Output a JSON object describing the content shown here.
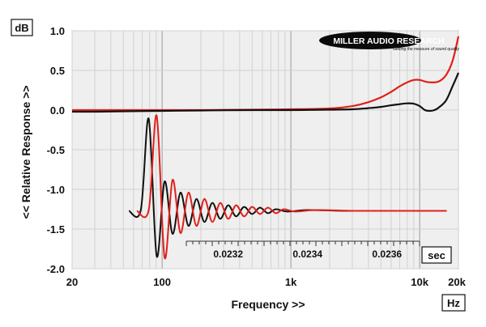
{
  "chart_data": {
    "type": "line",
    "title": "",
    "xlabel": "Frequency >>",
    "ylabel": "<< Relative Response >>",
    "x_unit": "Hz",
    "y_unit": "dB",
    "x_scale": "log",
    "xlim": [
      20,
      20000
    ],
    "ylim": [
      -2.0,
      1.0
    ],
    "x_ticks": [
      {
        "value": 20,
        "label": "20"
      },
      {
        "value": 100,
        "label": "100"
      },
      {
        "value": 1000,
        "label": "1k"
      },
      {
        "value": 10000,
        "label": "10k"
      },
      {
        "value": 20000,
        "label": "20k"
      }
    ],
    "y_ticks": [
      {
        "value": 1.0,
        "label": "1.0"
      },
      {
        "value": 0.5,
        "label": "0.5"
      },
      {
        "value": 0.0,
        "label": "0.0"
      },
      {
        "value": -0.5,
        "label": "-0.5"
      },
      {
        "value": -1.0,
        "label": "-1.0"
      },
      {
        "value": -1.5,
        "label": "-1.5"
      },
      {
        "value": -2.0,
        "label": "-2.0"
      }
    ],
    "grid": true,
    "brand": "MILLER AUDIO RESEARCH",
    "brand_tagline": "Getting the measure of sound quality",
    "frequency_response": [
      {
        "color": "#e0201a",
        "x": [
          20,
          30,
          50,
          100,
          200,
          500,
          1000,
          2000,
          3000,
          4000,
          5000,
          6000,
          7000,
          8000,
          9000,
          10000,
          11000,
          12000,
          14000,
          16000,
          18000,
          20000
        ],
        "y": [
          0.0,
          0.0,
          0.0,
          0.0,
          0.0,
          0.005,
          0.01,
          0.02,
          0.05,
          0.1,
          0.16,
          0.23,
          0.3,
          0.35,
          0.38,
          0.38,
          0.36,
          0.35,
          0.36,
          0.44,
          0.62,
          0.93
        ]
      },
      {
        "color": "#111111",
        "x": [
          20,
          30,
          50,
          100,
          200,
          500,
          1000,
          2000,
          3000,
          4000,
          5000,
          6000,
          7000,
          8000,
          9000,
          10000,
          11000,
          12000,
          13000,
          14000,
          16000,
          18000,
          20000
        ],
        "y": [
          -0.02,
          -0.02,
          -0.015,
          -0.01,
          -0.005,
          0.0,
          0.0,
          0.005,
          0.01,
          0.025,
          0.04,
          0.06,
          0.075,
          0.085,
          0.08,
          0.05,
          0.0,
          -0.01,
          0.0,
          0.03,
          0.12,
          0.3,
          0.47
        ]
      }
    ],
    "impulse_response": {
      "x_unit": "sec",
      "x_ticks": [
        {
          "value": 0.0232,
          "label": "0.0232"
        },
        {
          "value": 0.0234,
          "label": "0.0234"
        },
        {
          "value": 0.0236,
          "label": "0.0236"
        }
      ],
      "baseline_db": -1.27,
      "series": [
        {
          "color": "#111111",
          "x": [
            0.02295,
            0.02298,
            0.023,
            0.02302,
            0.02304,
            0.02306,
            0.02308,
            0.0231,
            0.02312,
            0.02314,
            0.02316,
            0.02318,
            0.0232,
            0.02322,
            0.02324,
            0.02326,
            0.02328,
            0.0233,
            0.02332,
            0.02335,
            0.0234,
            0.0235,
            0.0236,
            0.02375
          ],
          "y": [
            -1.27,
            -1.26,
            -0.11,
            -1.84,
            -0.9,
            -1.56,
            -1.04,
            -1.46,
            -1.12,
            -1.41,
            -1.17,
            -1.37,
            -1.2,
            -1.34,
            -1.22,
            -1.31,
            -1.23,
            -1.3,
            -1.25,
            -1.28,
            -1.26,
            -1.27,
            -1.27,
            -1.27
          ]
        },
        {
          "color": "#e0201a",
          "x": [
            0.02297,
            0.023,
            0.02302,
            0.02304,
            0.02306,
            0.02308,
            0.0231,
            0.02312,
            0.02314,
            0.02316,
            0.02318,
            0.0232,
            0.02322,
            0.02324,
            0.02326,
            0.02328,
            0.0233,
            0.02332,
            0.02334,
            0.02337,
            0.02342,
            0.02352,
            0.02362,
            0.02375
          ],
          "y": [
            -1.27,
            -1.26,
            -0.07,
            -1.86,
            -0.88,
            -1.55,
            -1.04,
            -1.46,
            -1.12,
            -1.41,
            -1.17,
            -1.37,
            -1.2,
            -1.34,
            -1.22,
            -1.31,
            -1.23,
            -1.3,
            -1.25,
            -1.28,
            -1.26,
            -1.27,
            -1.27,
            -1.27
          ]
        }
      ]
    }
  }
}
